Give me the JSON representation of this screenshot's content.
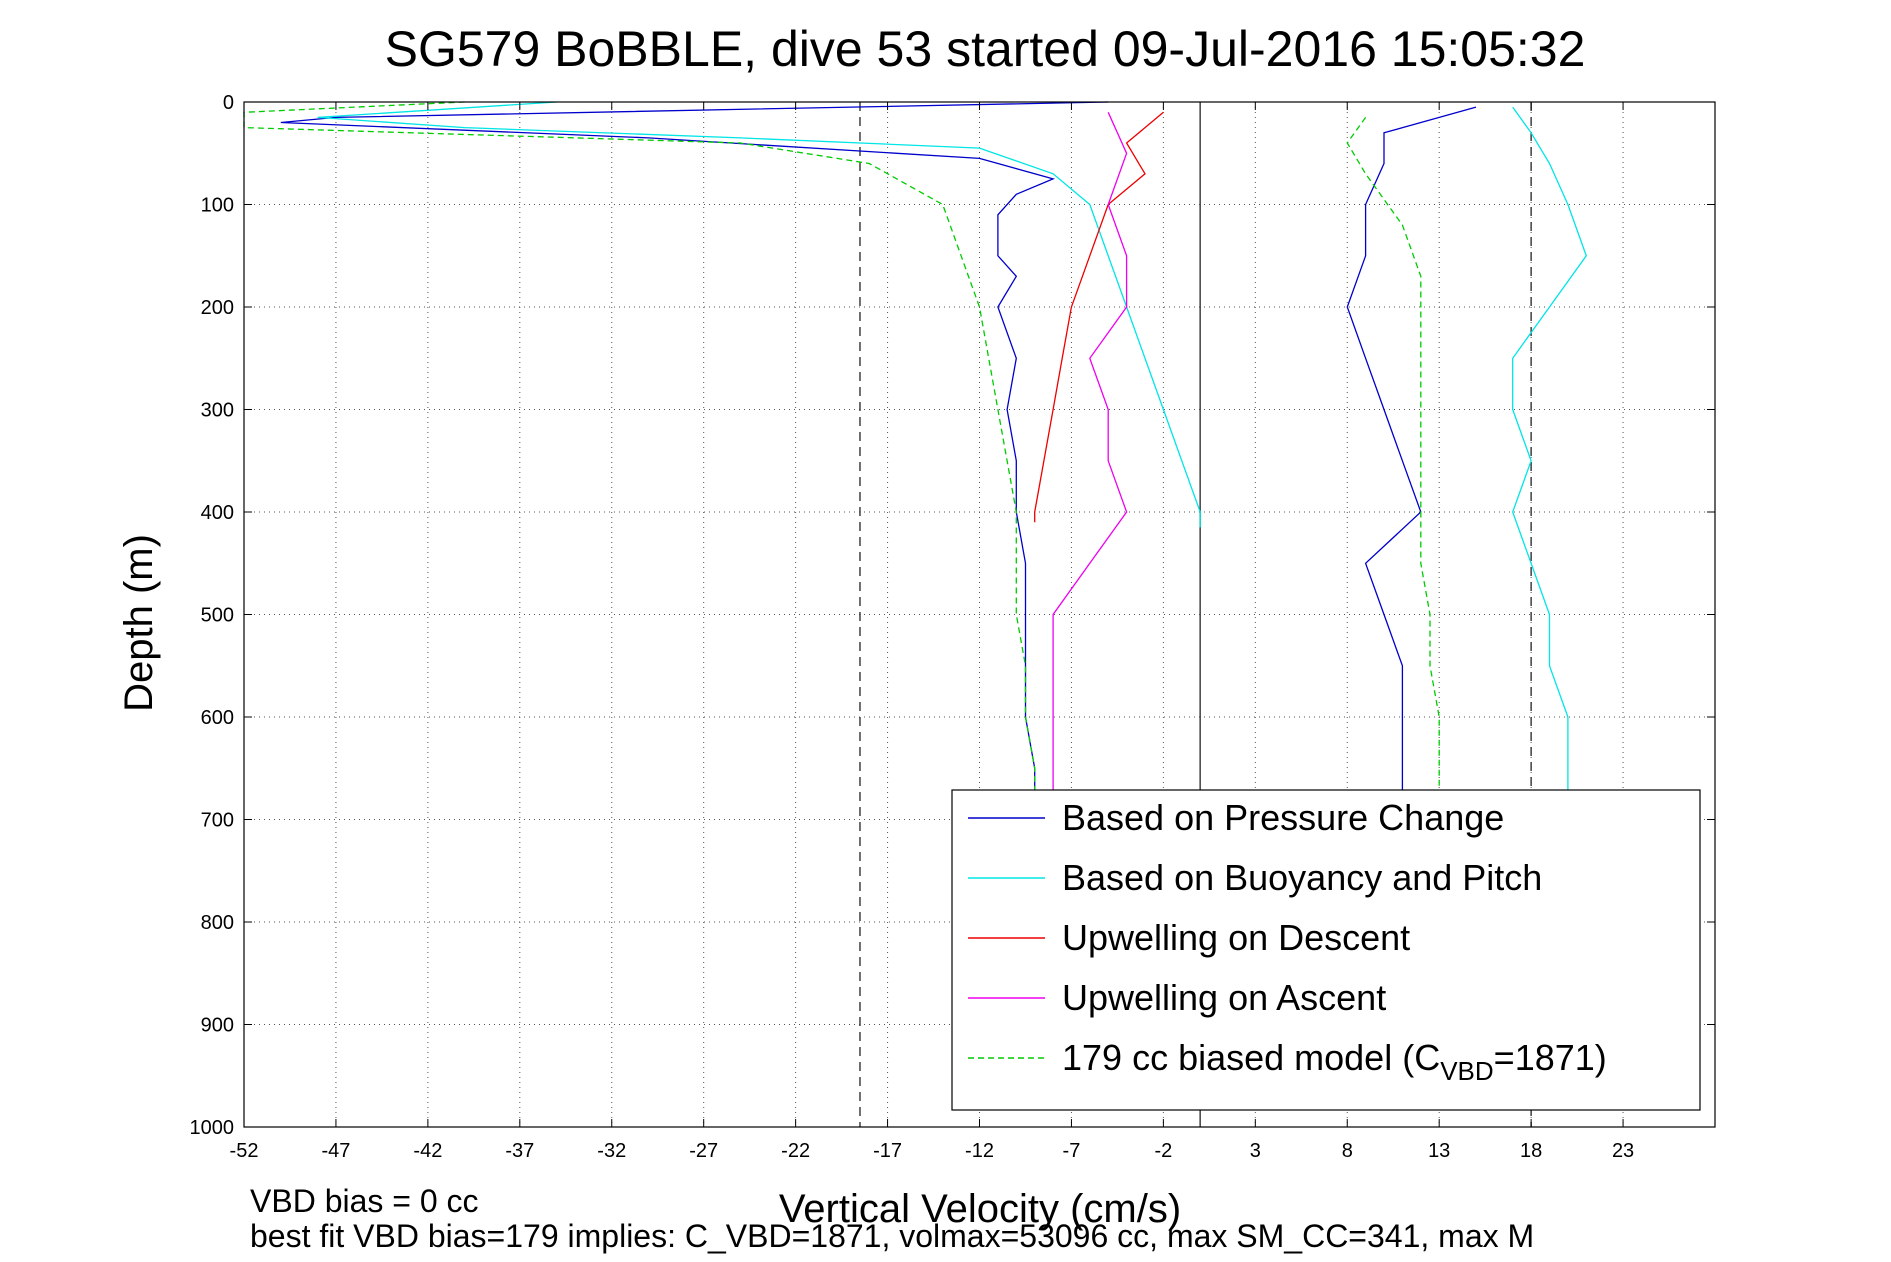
{
  "chart_data": {
    "type": "line",
    "title": "SG579 BoBBLE, dive 53 started 09-Jul-2016 15:05:32",
    "xlabel": "Vertical Velocity (cm/s)",
    "ylabel": "Depth (m)",
    "xlim": [
      -52,
      28
    ],
    "ylim": [
      1000,
      0
    ],
    "xticks": [
      -52,
      -47,
      -42,
      -37,
      -32,
      -27,
      -22,
      -17,
      -12,
      -7,
      -2,
      3,
      8,
      13,
      18,
      23
    ],
    "yticks": [
      0,
      100,
      200,
      300,
      400,
      500,
      600,
      700,
      800,
      900,
      1000
    ],
    "grid": true,
    "legend_position": "bottom-right",
    "reference_lines": [
      {
        "x": -18.5,
        "style": "dashed"
      },
      {
        "x": 18,
        "style": "dashed"
      },
      {
        "x": 0,
        "style": "solid"
      }
    ],
    "series": [
      {
        "name": "Based on Pressure Change",
        "color": "#0000cc",
        "points": [
          [
            -5,
            0
          ],
          [
            -47,
            15
          ],
          [
            -50,
            20
          ],
          [
            -30,
            35
          ],
          [
            -12,
            55
          ],
          [
            -8,
            75
          ],
          [
            -10,
            90
          ],
          [
            -11,
            110
          ],
          [
            -11,
            150
          ],
          [
            -10,
            170
          ],
          [
            -11,
            200
          ],
          [
            -10,
            250
          ],
          [
            -10.5,
            300
          ],
          [
            -10,
            350
          ],
          [
            -10,
            400
          ],
          [
            -9.5,
            450
          ],
          [
            -9.5,
            500
          ],
          [
            -9.5,
            550
          ],
          [
            -9.5,
            600
          ],
          [
            -9,
            650
          ],
          [
            -9,
            680
          ]
        ]
      },
      {
        "name": "Based on Buoyancy and Pitch",
        "color": "#00e5e5",
        "points": [
          [
            -35,
            0
          ],
          [
            -48,
            15
          ],
          [
            -40,
            25
          ],
          [
            -25,
            35
          ],
          [
            -12,
            45
          ],
          [
            -8,
            70
          ],
          [
            -6,
            100
          ],
          [
            -5,
            150
          ],
          [
            -4,
            200
          ],
          [
            -3,
            250
          ],
          [
            -2,
            300
          ],
          [
            -1,
            350
          ],
          [
            0,
            400
          ],
          [
            0,
            415
          ]
        ]
      },
      {
        "name": "Upwelling on Descent",
        "color": "#ee0000",
        "points": [
          [
            -2,
            10
          ],
          [
            -4,
            40
          ],
          [
            -3,
            70
          ],
          [
            -5,
            100
          ],
          [
            -6,
            150
          ],
          [
            -7,
            200
          ],
          [
            -7.5,
            250
          ],
          [
            -8,
            300
          ],
          [
            -8.5,
            350
          ],
          [
            -9,
            400
          ],
          [
            -9,
            410
          ]
        ]
      },
      {
        "name": "Upwelling on Ascent",
        "color": "#ee00ee",
        "points": [
          [
            -5,
            10
          ],
          [
            -4,
            50
          ],
          [
            -5,
            100
          ],
          [
            -4,
            150
          ],
          [
            -4,
            200
          ],
          [
            -6,
            250
          ],
          [
            -5,
            300
          ],
          [
            -5,
            350
          ],
          [
            -4,
            400
          ],
          [
            -6,
            450
          ],
          [
            -8,
            500
          ],
          [
            -8,
            550
          ],
          [
            -8,
            600
          ],
          [
            -8,
            650
          ],
          [
            -8,
            680
          ]
        ]
      },
      {
        "name": "179 cc biased model (C",
        "name_sub": "VBD",
        "name_suffix": "=1871)",
        "color": "#00cc00",
        "points": [
          [
            -40,
            0
          ],
          [
            -52,
            10
          ],
          [
            -52,
            25
          ],
          [
            -25,
            40
          ],
          [
            -18,
            60
          ],
          [
            -14,
            100
          ],
          [
            -13,
            150
          ],
          [
            -12,
            200
          ],
          [
            -11.5,
            250
          ],
          [
            -11,
            300
          ],
          [
            -10.5,
            350
          ],
          [
            -10,
            400
          ],
          [
            -10,
            450
          ],
          [
            -10,
            500
          ],
          [
            -9.5,
            550
          ],
          [
            -9.5,
            600
          ],
          [
            -9,
            650
          ],
          [
            -9,
            680
          ]
        ]
      },
      {
        "name": "",
        "color": "#0000cc",
        "points": [
          [
            15,
            5
          ],
          [
            10,
            30
          ],
          [
            10,
            60
          ],
          [
            9,
            100
          ],
          [
            9,
            150
          ],
          [
            8,
            200
          ],
          [
            9,
            250
          ],
          [
            10,
            300
          ],
          [
            11,
            350
          ],
          [
            12,
            400
          ],
          [
            9,
            450
          ],
          [
            10,
            500
          ],
          [
            11,
            550
          ],
          [
            11,
            600
          ],
          [
            11,
            650
          ],
          [
            11,
            680
          ]
        ]
      },
      {
        "name": "",
        "color": "#00e5e5",
        "points": [
          [
            17,
            5
          ],
          [
            18,
            30
          ],
          [
            19,
            60
          ],
          [
            20,
            100
          ],
          [
            21,
            150
          ],
          [
            19,
            200
          ],
          [
            17,
            250
          ],
          [
            17,
            300
          ],
          [
            18,
            350
          ],
          [
            17,
            400
          ],
          [
            18,
            450
          ],
          [
            19,
            500
          ],
          [
            19,
            550
          ],
          [
            20,
            600
          ],
          [
            20,
            650
          ],
          [
            20,
            680
          ]
        ]
      },
      {
        "name": "",
        "color": "#00cc00",
        "points": [
          [
            9,
            15
          ],
          [
            8,
            40
          ],
          [
            9,
            70
          ],
          [
            11,
            120
          ],
          [
            12,
            170
          ],
          [
            12,
            220
          ],
          [
            12,
            270
          ],
          [
            12,
            300
          ],
          [
            12,
            350
          ],
          [
            12,
            400
          ],
          [
            12,
            450
          ],
          [
            12.5,
            500
          ],
          [
            12.5,
            550
          ],
          [
            13,
            600
          ],
          [
            13,
            650
          ],
          [
            13,
            680
          ]
        ]
      }
    ]
  },
  "footer": {
    "line1": "VBD bias = 0 cc",
    "line2": "best fit VBD bias=179 implies: C_VBD=1871, volmax=53096 cc, max SM_CC=341, max M"
  }
}
